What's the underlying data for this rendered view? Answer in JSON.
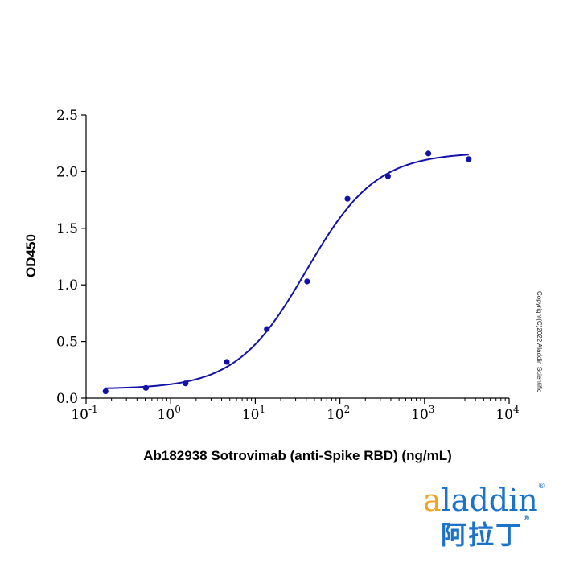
{
  "chart_data": {
    "type": "scatter",
    "xlabel": "Ab182938 Sotrovimab (anti-Spike RBD) (ng/mL)",
    "ylabel": "OD450",
    "x_scale": "log",
    "xlim": [
      0.1,
      10000
    ],
    "ylim": [
      0,
      2.5
    ],
    "x_ticks": [
      {
        "base": "10",
        "exp": "-1"
      },
      {
        "base": "10",
        "exp": "0"
      },
      {
        "base": "10",
        "exp": "1"
      },
      {
        "base": "10",
        "exp": "2"
      },
      {
        "base": "10",
        "exp": "3"
      },
      {
        "base": "10",
        "exp": "4"
      }
    ],
    "y_ticks": [
      "0.0",
      "0.5",
      "1.0",
      "1.5",
      "2.0",
      "2.5"
    ],
    "points": [
      {
        "x": 0.17,
        "y": 0.06
      },
      {
        "x": 0.51,
        "y": 0.09
      },
      {
        "x": 1.5,
        "y": 0.13
      },
      {
        "x": 4.6,
        "y": 0.32
      },
      {
        "x": 13.7,
        "y": 0.61
      },
      {
        "x": 41,
        "y": 1.03
      },
      {
        "x": 123,
        "y": 1.76
      },
      {
        "x": 370,
        "y": 1.96
      },
      {
        "x": 1110,
        "y": 2.16
      },
      {
        "x": 3330,
        "y": 2.11
      }
    ],
    "fit": {
      "model": "4PL",
      "bottom": 0.08,
      "top": 2.17,
      "ec50": 40,
      "hill": 1.05
    },
    "color": "#1212a8",
    "grid": false,
    "legend": "none"
  },
  "watermark": "Copyright(C)2022 Aladdin Scientific",
  "logo": {
    "en_prefix": "a",
    "en_rest": "laddin",
    "zh": "阿拉丁",
    "reg": "®"
  }
}
